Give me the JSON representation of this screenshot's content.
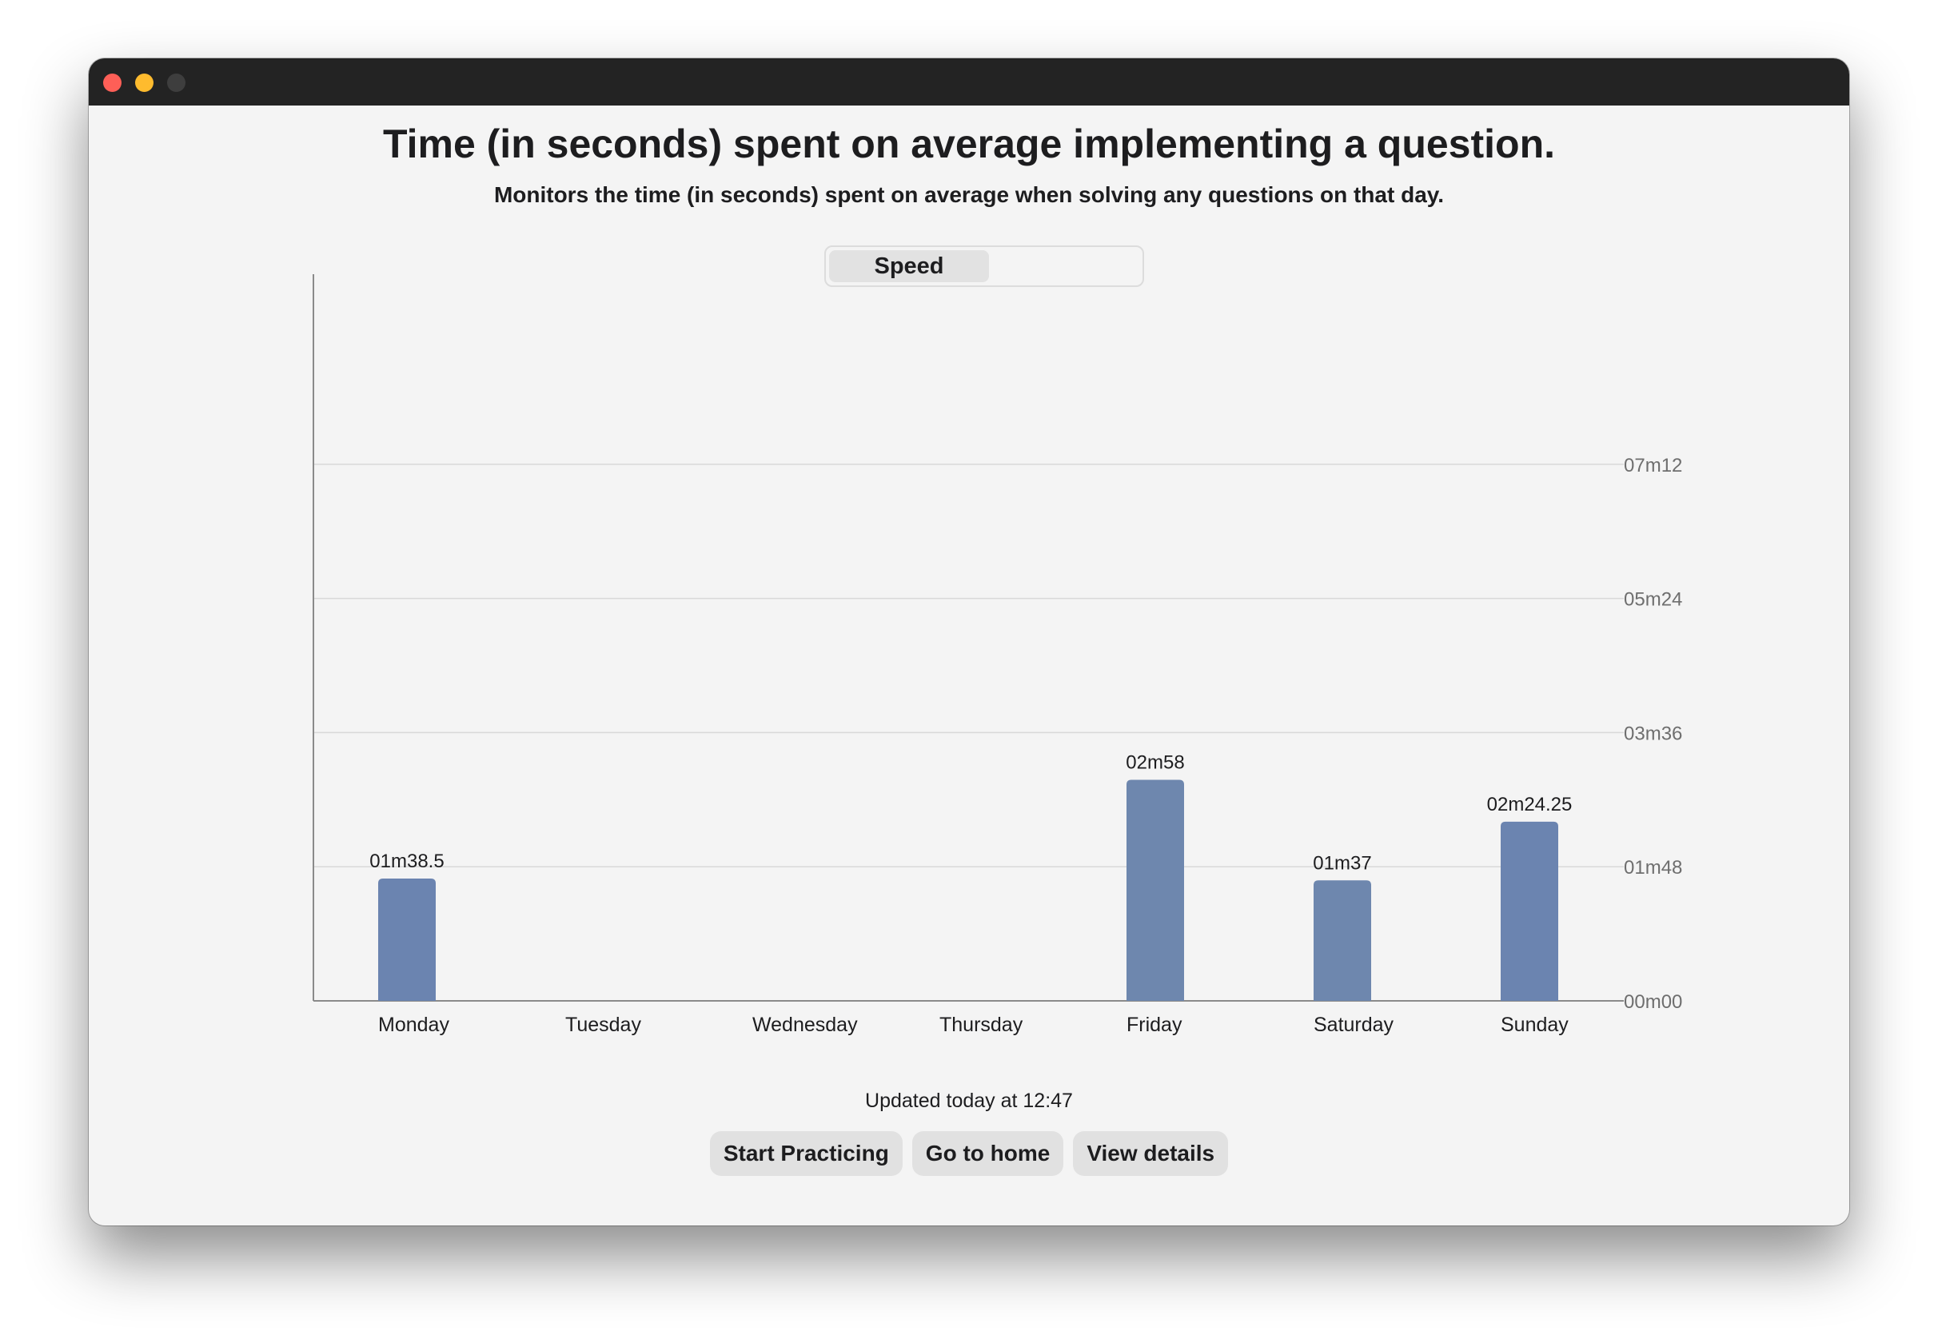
{
  "header": {
    "title": "Time (in seconds) spent on average implementing a question.",
    "subtitle": "Monitors the time (in seconds) spent on average when solving any questions on that day."
  },
  "segmented_control": {
    "selected": "Speed",
    "options": [
      "Speed"
    ]
  },
  "chart_data": {
    "type": "bar",
    "categories": [
      "Monday",
      "Tuesday",
      "Wednesday",
      "Thursday",
      "Friday",
      "Saturday",
      "Sunday"
    ],
    "values_seconds": [
      98.5,
      0,
      0,
      0,
      178,
      97,
      144.25
    ],
    "data_labels": [
      "01m38.5",
      "",
      "",
      "",
      "02m58",
      "01m37",
      "02m24.25"
    ],
    "y_ticks_seconds": [
      0,
      108,
      216,
      324,
      432
    ],
    "y_tick_labels": [
      "00m00",
      "01m48",
      "03m36",
      "05m24",
      "07m12"
    ],
    "ylim_seconds": [
      0,
      540
    ],
    "y_axis_position": "right",
    "grid": true,
    "bar_color": "#6b84b0",
    "bar_color_alt": "#6e87ae",
    "title": "",
    "xlabel": "",
    "ylabel": ""
  },
  "footer": {
    "updated_text": "Updated today at 12:47",
    "buttons": {
      "start_practicing": "Start Practicing",
      "go_to_home": "Go to home",
      "view_details": "View details"
    }
  }
}
